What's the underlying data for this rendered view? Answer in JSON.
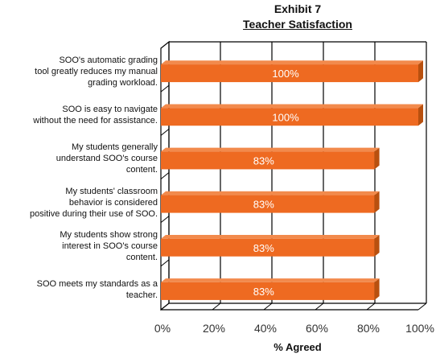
{
  "chart_data": {
    "type": "bar",
    "orientation": "horizontal",
    "title": "Exhibit 7",
    "subtitle": "Teacher Satisfaction",
    "xlabel": "% Agreed",
    "ylabel": "",
    "xlim": [
      0,
      100
    ],
    "x_ticks": [
      "0%",
      "20%",
      "40%",
      "60%",
      "80%",
      "100%"
    ],
    "grid": true,
    "legend": "none",
    "categories": [
      "SOO's automatic grading tool greatly reduces my manual grading workload.",
      "SOO is easy to navigate without the need for assistance.",
      "My students generally understand SOO's course content.",
      "My students' classroom behavior is considered positive during their use of SOO.",
      "My students show strong interest in SOO's course content.",
      "SOO meets my standards as a teacher."
    ],
    "category_lines": [
      [
        "SOO's automatic grading",
        "tool greatly reduces my manual",
        "grading workload."
      ],
      [
        "SOO is easy to navigate",
        "without the need for assistance."
      ],
      [
        "My students generally",
        "understand SOO's course",
        "content."
      ],
      [
        "My students' classroom",
        "behavior is considered",
        "positive during their use of SOO."
      ],
      [
        "My students show strong",
        "interest in SOO's course",
        "content."
      ],
      [
        "SOO meets my standards as a",
        "teacher."
      ]
    ],
    "values": [
      100,
      100,
      83,
      83,
      83,
      83
    ],
    "data_labels": [
      "100%",
      "100%",
      "83%",
      "83%",
      "83%",
      "83%"
    ],
    "colors": {
      "bar_front": "#EE6A21",
      "bar_top": "#F28A4C",
      "bar_side": "#B8500F",
      "label_text": "#ffffff",
      "grid": "#000000"
    }
  }
}
